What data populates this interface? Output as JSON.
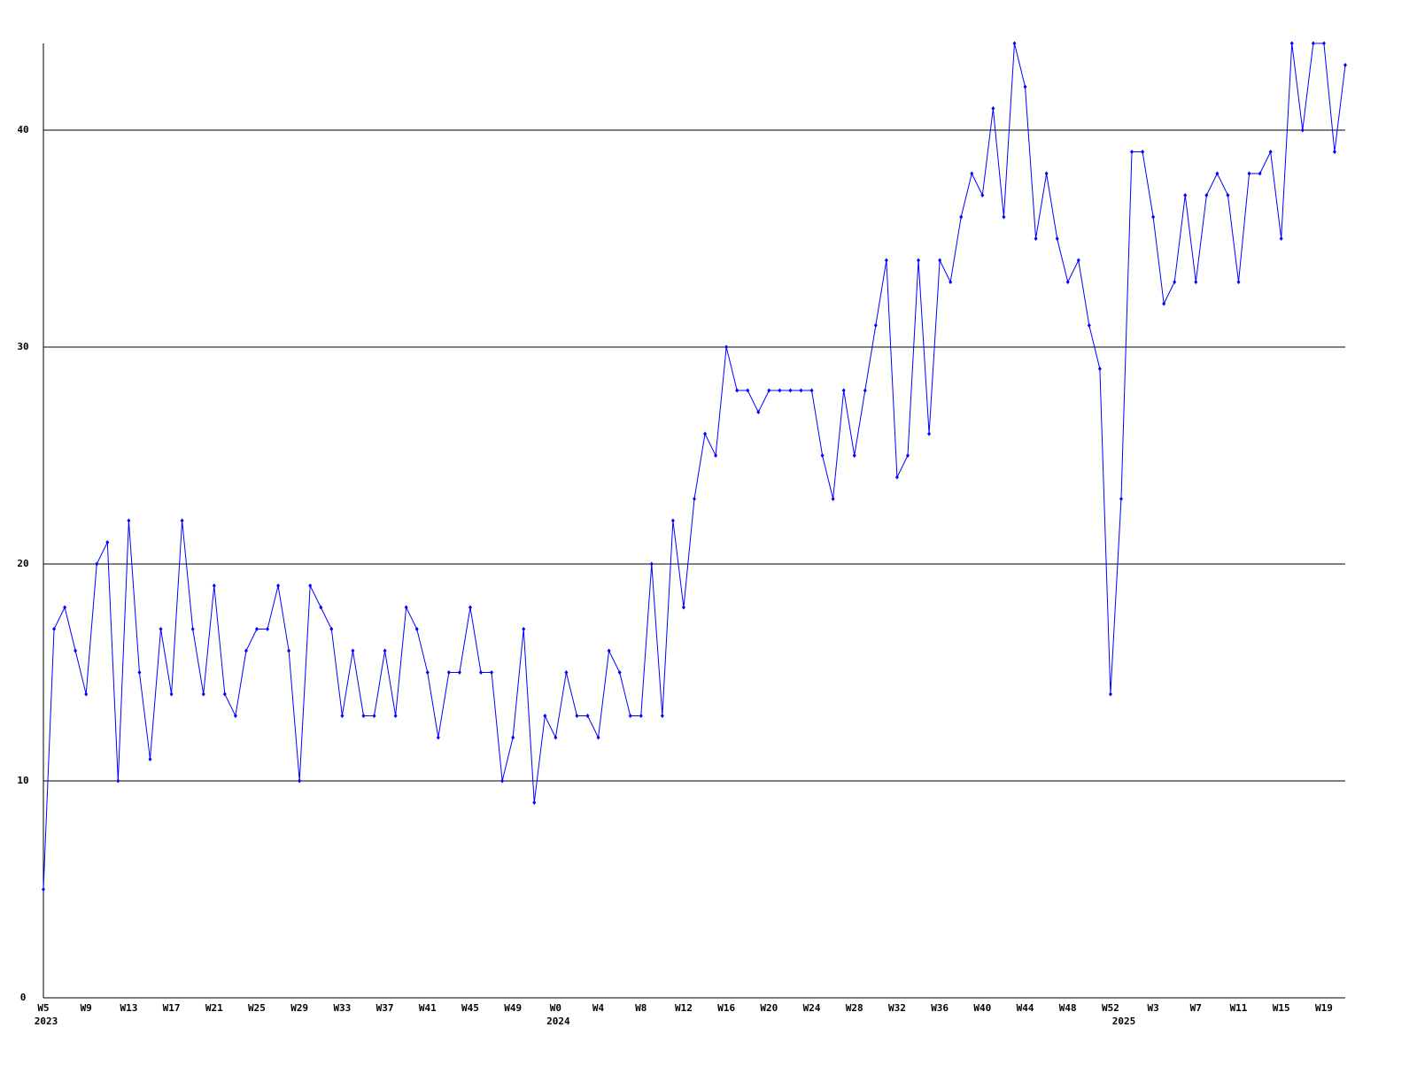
{
  "chart_data": {
    "type": "line",
    "categories": [
      "W5",
      null,
      null,
      null,
      "W9",
      null,
      null,
      null,
      "W13",
      null,
      null,
      null,
      "W17",
      null,
      null,
      null,
      "W21",
      null,
      null,
      null,
      "W25",
      null,
      null,
      null,
      "W29",
      null,
      null,
      null,
      "W33",
      null,
      null,
      null,
      "W37",
      null,
      null,
      null,
      "W41",
      null,
      null,
      null,
      "W45",
      null,
      null,
      null,
      "W49",
      null,
      null,
      null,
      "W0",
      null,
      null,
      null,
      "W4",
      null,
      null,
      null,
      "W8",
      null,
      null,
      null,
      "W12",
      null,
      null,
      null,
      "W16",
      null,
      null,
      null,
      "W20",
      null,
      null,
      null,
      "W24",
      null,
      null,
      null,
      "W28",
      null,
      null,
      null,
      "W32",
      null,
      null,
      null,
      "W36",
      null,
      null,
      null,
      "W40",
      null,
      null,
      null,
      "W44",
      null,
      null,
      null,
      "W48",
      null,
      null,
      null,
      "W52",
      null,
      null,
      null,
      "W3",
      null,
      null,
      null,
      "W7",
      null,
      null,
      null,
      "W11",
      null,
      null,
      null,
      "W15",
      null,
      null,
      null,
      "W19",
      null,
      null
    ],
    "category_years": [
      "2023",
      null,
      null,
      null,
      null,
      null,
      null,
      null,
      null,
      null,
      null,
      null,
      null,
      null,
      null,
      null,
      null,
      null,
      null,
      null,
      null,
      null,
      null,
      null,
      null,
      null,
      null,
      null,
      null,
      null,
      null,
      null,
      null,
      null,
      null,
      null,
      null,
      null,
      null,
      null,
      null,
      null,
      null,
      null,
      null,
      null,
      null,
      null,
      "2024",
      null,
      null,
      null,
      null,
      null,
      null,
      null,
      null,
      null,
      null,
      null,
      null,
      null,
      null,
      null,
      null,
      null,
      null,
      null,
      null,
      null,
      null,
      null,
      null,
      null,
      null,
      null,
      null,
      null,
      null,
      null,
      null,
      null,
      null,
      null,
      null,
      null,
      null,
      null,
      null,
      null,
      null,
      null,
      null,
      null,
      null,
      null,
      null,
      null,
      null,
      null,
      null,
      "2025",
      null,
      null,
      null,
      null,
      null,
      null,
      null,
      null,
      null,
      null,
      null,
      null,
      null,
      null,
      null,
      null,
      null,
      null,
      null,
      null,
      null
    ],
    "values": [
      5,
      17,
      18,
      16,
      14,
      20,
      21,
      10,
      22,
      15,
      11,
      17,
      14,
      22,
      17,
      14,
      19,
      14,
      13,
      16,
      17,
      17,
      19,
      16,
      10,
      19,
      18,
      17,
      13,
      16,
      13,
      13,
      16,
      13,
      18,
      17,
      15,
      12,
      15,
      15,
      18,
      15,
      15,
      10,
      12,
      17,
      9,
      13,
      12,
      15,
      13,
      13,
      12,
      16,
      15,
      13,
      13,
      20,
      13,
      22,
      18,
      23,
      26,
      25,
      30,
      28,
      28,
      27,
      28,
      28,
      28,
      28,
      28,
      25,
      23,
      28,
      25,
      28,
      31,
      34,
      24,
      25,
      34,
      26,
      34,
      33,
      36,
      38,
      37,
      41,
      36,
      44,
      42,
      35,
      38,
      35,
      33,
      34,
      31,
      29,
      14,
      23,
      39,
      39,
      36,
      32,
      33,
      37,
      33,
      37,
      38,
      37,
      33,
      38,
      38,
      39,
      35,
      44,
      40,
      44,
      44,
      39,
      43
    ],
    "color": "#0000ff",
    "ylim": [
      0,
      44
    ],
    "yticks": [
      0,
      10,
      20,
      30,
      40
    ],
    "grid": true
  }
}
